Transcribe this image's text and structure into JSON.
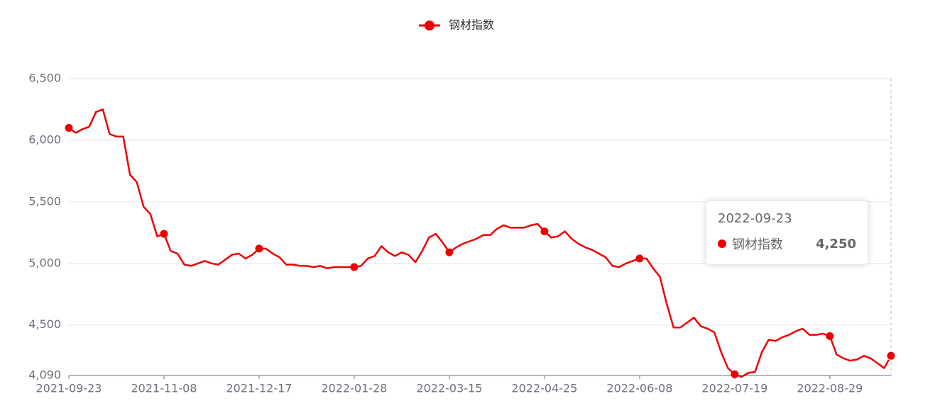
{
  "chart_data": {
    "type": "line",
    "categories": [
      "2021-09-23",
      null,
      null,
      null,
      null,
      null,
      null,
      null,
      null,
      null,
      null,
      null,
      null,
      null,
      "2021-11-08",
      null,
      null,
      null,
      null,
      null,
      null,
      null,
      null,
      null,
      null,
      null,
      null,
      null,
      "2021-12-17",
      null,
      null,
      null,
      null,
      null,
      null,
      null,
      null,
      null,
      null,
      null,
      null,
      null,
      "2022-01-28",
      null,
      null,
      null,
      null,
      null,
      null,
      null,
      null,
      null,
      null,
      null,
      null,
      null,
      "2022-03-15",
      null,
      null,
      null,
      null,
      null,
      null,
      null,
      null,
      null,
      null,
      null,
      null,
      null,
      "2022-04-25",
      null,
      null,
      null,
      null,
      null,
      null,
      null,
      null,
      null,
      null,
      null,
      null,
      null,
      "2022-06-08",
      null,
      null,
      null,
      null,
      null,
      null,
      null,
      null,
      null,
      null,
      null,
      null,
      null,
      "2022-07-19",
      null,
      null,
      null,
      null,
      null,
      null,
      null,
      null,
      null,
      null,
      null,
      null,
      null,
      "2022-08-29",
      null,
      null,
      null,
      null,
      null,
      null,
      null,
      null,
      "2022-09-23"
    ],
    "series": [
      {
        "name": "钢材指数",
        "color": "#ee0000",
        "values": [
          6100,
          6060,
          6090,
          6110,
          6230,
          6250,
          6050,
          6030,
          6030,
          5720,
          5660,
          5460,
          5400,
          5220,
          5240,
          5100,
          5080,
          4990,
          4980,
          5000,
          5020,
          5000,
          4990,
          5030,
          5070,
          5080,
          5040,
          5070,
          5120,
          5120,
          5080,
          5050,
          4990,
          4990,
          4980,
          4980,
          4970,
          4980,
          4960,
          4970,
          4970,
          4970,
          4970,
          4980,
          5040,
          5060,
          5140,
          5090,
          5060,
          5090,
          5070,
          5010,
          5100,
          5210,
          5240,
          5170,
          5090,
          5130,
          5160,
          5180,
          5200,
          5230,
          5230,
          5280,
          5310,
          5290,
          5290,
          5290,
          5310,
          5320,
          5260,
          5210,
          5220,
          5260,
          5200,
          5160,
          5130,
          5110,
          5080,
          5050,
          4980,
          4970,
          5000,
          5020,
          5040,
          5040,
          4960,
          4890,
          4670,
          4480,
          4480,
          4520,
          4560,
          4490,
          4470,
          4440,
          4280,
          4150,
          4100,
          4080,
          4110,
          4120,
          4280,
          4380,
          4370,
          4400,
          4420,
          4450,
          4470,
          4420,
          4420,
          4430,
          4410,
          4260,
          4230,
          4210,
          4220,
          4250,
          4230,
          4190,
          4150,
          4250
        ]
      }
    ],
    "ylim": [
      4090,
      6500
    ],
    "yticks": [
      {
        "value": 4090,
        "label": "4,090"
      },
      {
        "value": 4500,
        "label": "4,500"
      },
      {
        "value": 5000,
        "label": "5,000"
      },
      {
        "value": 5500,
        "label": "5,500"
      },
      {
        "value": 6000,
        "label": "6,000"
      },
      {
        "value": 6500,
        "label": "6,500"
      }
    ],
    "grid": true,
    "legend": "top",
    "tooltip": {
      "value_label": "4,250"
    }
  }
}
